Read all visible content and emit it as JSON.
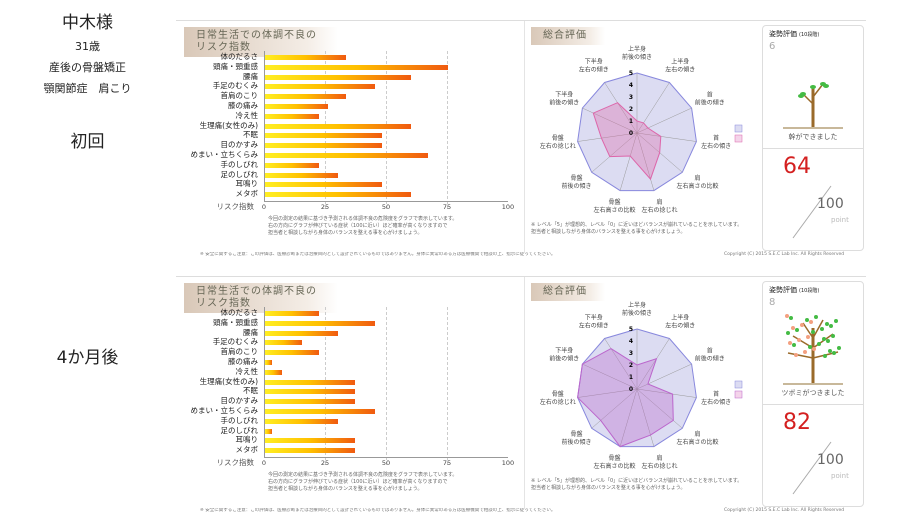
{
  "patient": {
    "name": "中木様",
    "age": "31歳",
    "conditions_1": "産後の骨盤矯正",
    "conditions_2": "顎関節症　肩こり"
  },
  "reports": [
    {
      "label": "初回",
      "bar_title": "日常生活での体調不良のリスク指数",
      "axis_label": "リスク指数",
      "radar_title": "総合評価",
      "posture_title": "姿勢評価",
      "posture_sub": "(10段階)",
      "posture_level": "6",
      "tree_caption": "幹ができました",
      "score": "64",
      "score_max": "100",
      "score_unit": "point",
      "chart_data": {
        "type": "bar",
        "categories": [
          "体のだるさ",
          "頭痛・頸重感",
          "腰痛",
          "手足のむくみ",
          "首肩のこり",
          "膝の痛み",
          "冷え性",
          "生理痛(女性のみ)",
          "不眠",
          "目のかすみ",
          "めまい・立ちくらみ",
          "手のしびれ",
          "足のしびれ",
          "耳鳴り",
          "メタボ"
        ],
        "values": [
          33,
          75,
          60,
          45,
          33,
          26,
          22,
          60,
          48,
          48,
          67,
          22,
          30,
          48,
          60
        ],
        "ylabel": "リスク指数",
        "xticks": [
          "0",
          "25",
          "50",
          "75",
          "100"
        ],
        "xlim": [
          0,
          100
        ]
      },
      "radar_data": {
        "type": "radar",
        "axes": [
          [
            "上半身",
            "前後の傾き"
          ],
          [
            "上半身",
            "左右の傾き"
          ],
          [
            "首",
            "前後の傾き"
          ],
          [
            "首",
            "左右の傾き"
          ],
          [
            "肩",
            "左右高さの比較"
          ],
          [
            "肩",
            "左右の捻じれ"
          ],
          [
            "骨盤",
            "左右高さの比較"
          ],
          [
            "骨盤",
            "前後の傾き"
          ],
          [
            "骨盤",
            "左右の捻じれ"
          ],
          [
            "下半身",
            "前後の傾き"
          ],
          [
            "下半身",
            "左右の傾き"
          ]
        ],
        "ideal": [
          5,
          5,
          5,
          5,
          5,
          5,
          5,
          5,
          5,
          5,
          5
        ],
        "values": [
          1,
          1,
          1,
          2,
          2.5,
          4,
          2,
          3,
          3,
          4,
          3
        ],
        "ticks": [
          "0",
          "1",
          "2",
          "3",
          "4",
          "5"
        ],
        "colors": {
          "ideal": "#8888dd",
          "actual": "#dd66aa"
        }
      },
      "note_bar": [
        "今回の測定の結果に基づき予測される体調不良の危険度をグラフで表示しています。",
        "右の方向にグラフが伸びている症状（100に近い）ほど確率が高くなりますので",
        "担当者と相談しながら身体のバランスを整える事を心がけましょう。"
      ],
      "note_radar": [
        "※ レベル「5」が理想的、レベル「0」に近いほどバランスが崩れていることを示しています。",
        "担当者と相談しながら身体のバランスを整える事を心がけましょう。"
      ],
      "footer_left": "※ 安全に関するご注意：この評価は、医療診断または治療目的として設計されているものではありません。身体に異常のある方は医療機関で相談の上、指示に従ってください。",
      "copyright": "Copyright (C) 2015 S.E.C Lab Inc. All Rights Reserved"
    },
    {
      "label": "4か月後",
      "bar_title": "日常生活での体調不良のリスク指数",
      "axis_label": "リスク指数",
      "radar_title": "総合評価",
      "posture_title": "姿勢評価",
      "posture_sub": "(10段階)",
      "posture_level": "8",
      "tree_caption": "ツボミがつきました",
      "score": "82",
      "score_max": "100",
      "score_unit": "point",
      "chart_data": {
        "type": "bar",
        "categories": [
          "体のだるさ",
          "頭痛・頸重感",
          "腰痛",
          "手足のむくみ",
          "首肩のこり",
          "膝の痛み",
          "冷え性",
          "生理痛(女性のみ)",
          "不眠",
          "目のかすみ",
          "めまい・立ちくらみ",
          "手のしびれ",
          "足のしびれ",
          "耳鳴り",
          "メタボ"
        ],
        "values": [
          22,
          45,
          30,
          15,
          22,
          3,
          7,
          37,
          37,
          37,
          45,
          30,
          3,
          37,
          37
        ],
        "ylabel": "リスク指数",
        "xticks": [
          "0",
          "25",
          "50",
          "75",
          "100"
        ],
        "xlim": [
          0,
          100
        ]
      },
      "radar_data": {
        "type": "radar",
        "axes": [
          [
            "上半身",
            "前後の傾き"
          ],
          [
            "上半身",
            "左右の傾き"
          ],
          [
            "首",
            "前後の傾き"
          ],
          [
            "首",
            "左右の傾き"
          ],
          [
            "肩",
            "左右高さの比較"
          ],
          [
            "肩",
            "左右の捻じれ"
          ],
          [
            "骨盤",
            "左右高さの比較"
          ],
          [
            "骨盤",
            "前後の傾き"
          ],
          [
            "骨盤",
            "左右の捻じれ"
          ],
          [
            "下半身",
            "前後の傾き"
          ],
          [
            "下半身",
            "左右の傾き"
          ]
        ],
        "ideal": [
          5,
          5,
          5,
          5,
          5,
          5,
          5,
          5,
          5,
          5,
          5
        ],
        "values": [
          2,
          3,
          1,
          3,
          4,
          4,
          5,
          4,
          5,
          5,
          4
        ],
        "ticks": [
          "0",
          "1",
          "2",
          "3",
          "4",
          "5"
        ],
        "colors": {
          "ideal": "#8888dd",
          "actual": "#bb66cc"
        }
      },
      "note_bar": [
        "今回の測定の結果に基づき予測される体調不良の危険度をグラフで表示しています。",
        "右の方向にグラフが伸びている症状（100に近い）ほど確率が高くなりますので",
        "担当者と相談しながら身体のバランスを整える事を心がけましょう。"
      ],
      "note_radar": [
        "※ レベル「5」が理想的、レベル「0」に近いほどバランスが崩れていることを示しています。",
        "担当者と相談しながら身体のバランスを整える事を心がけましょう。"
      ],
      "footer_left": "※ 安全に関するご注意：この評価は、医療診断または治療目的として設計されているものではありません。身体に異常のある方は医療機関で相談の上、指示に従ってください。",
      "copyright": "Copyright (C) 2015 S.E.C Lab Inc. All Rights Reserved"
    }
  ]
}
